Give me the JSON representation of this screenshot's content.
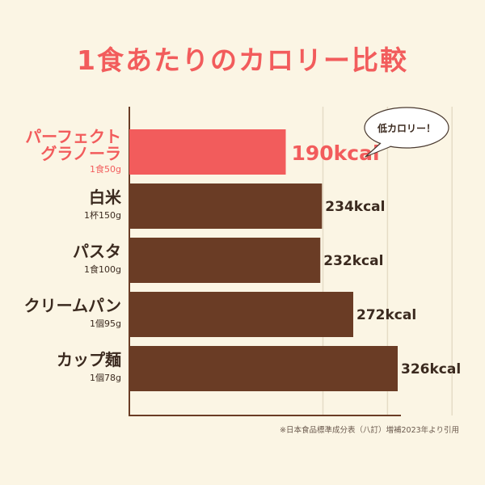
{
  "title": "1食あたりのカロリー比較",
  "source_note": "※日本食品標準成分表（八訂）増補2023年より引用",
  "callout": "低カロリー！",
  "colors": {
    "highlight": "#f25c5c",
    "bar": "#6a3c25",
    "grid": "#e6dcc6",
    "axis": "#6a3c25",
    "label": "#3b2a1f"
  },
  "chart_data": {
    "type": "bar",
    "orientation": "horizontal",
    "unit": "kcal",
    "categories": [
      {
        "name": [
          "パーフェクト",
          "グラノーラ"
        ],
        "portion": "1食50g",
        "value": 190,
        "value_label": "190kcal",
        "highlight": true
      },
      {
        "name": [
          "白米"
        ],
        "portion": "1杯150g",
        "value": 234,
        "value_label": "234kcal",
        "highlight": false
      },
      {
        "name": [
          "パスタ"
        ],
        "portion": "1食100g",
        "value": 232,
        "value_label": "232kcal",
        "highlight": false
      },
      {
        "name": [
          "クリームパン"
        ],
        "portion": "1個95g",
        "value": 272,
        "value_label": "272kcal",
        "highlight": false
      },
      {
        "name": [
          "カップ麺"
        ],
        "portion": "1個78g",
        "value": 326,
        "value_label": "326kcal",
        "highlight": false
      }
    ],
    "xlim": [
      0,
      400
    ],
    "grid": true
  }
}
